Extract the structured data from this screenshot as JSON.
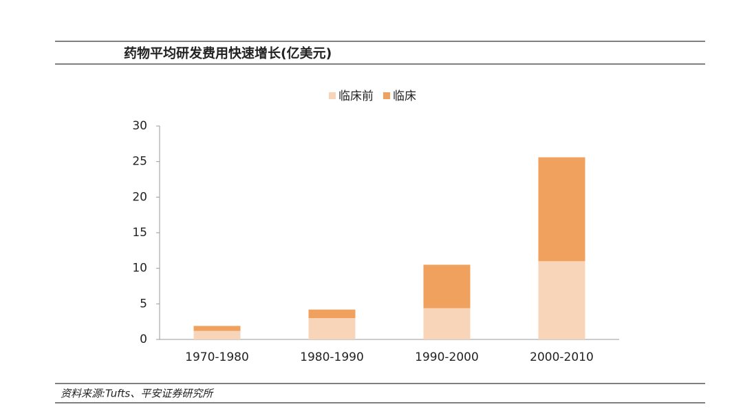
{
  "chart_data": {
    "type": "stacked_bar",
    "title": "药物平均研发费用快速增长(亿美元)",
    "source": "资料来源:Tufts、平安证券研究所",
    "categories": [
      "1970-1980",
      "1980-1990",
      "1990-2000",
      "2000-2010"
    ],
    "series": [
      {
        "name": "临床前",
        "color": "#f8d5b8",
        "values": [
          1.2,
          3.0,
          4.4,
          11.0
        ]
      },
      {
        "name": "临床",
        "color": "#f0a15e",
        "values": [
          0.7,
          1.2,
          6.1,
          14.6
        ]
      }
    ],
    "ylim": [
      0,
      30
    ],
    "yticks": [
      0,
      5,
      10,
      15,
      20,
      25,
      30
    ],
    "grid": false,
    "legend": "top"
  }
}
